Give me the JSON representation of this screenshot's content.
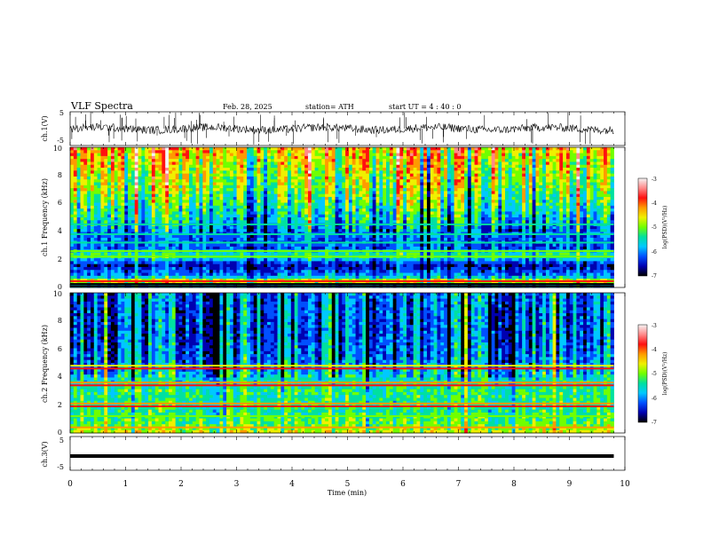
{
  "header": {
    "title": "VLF  Spectra",
    "date": "Feb. 28, 2025",
    "station": "station= ATH",
    "start": "start  UT  =   4  : 40 : 0"
  },
  "colorbar": {
    "label": "log(PSD)(V²/Hz)",
    "ticks": [
      "-3",
      "-4",
      "-5",
      "-6",
      "-7"
    ],
    "colors": [
      "#f4f4f4",
      "#ff8a8a",
      "#ff1010",
      "#ff9a00",
      "#f0f000",
      "#70ff00",
      "#00e0a0",
      "#00c8ff",
      "#0050ff",
      "#0000b0",
      "#000000"
    ]
  },
  "chart_data": [
    {
      "type": "line",
      "name": "ch1",
      "ylabel": "ch.1(V)",
      "ylim": [
        -5,
        5
      ],
      "yticks": [
        "5",
        "-5"
      ],
      "xlim": [
        0,
        10
      ],
      "data_end": 9.8,
      "baseline": 0,
      "noise_amplitude": 1.2,
      "spike_count": 70
    },
    {
      "type": "heatmap",
      "name": "ch1-spectrogram",
      "ylabel": "ch.1 Frequency (kHz)",
      "ylim": [
        0,
        10
      ],
      "yticks": [
        "0",
        "2",
        "4",
        "6",
        "8",
        "10"
      ],
      "xlim": [
        0,
        10
      ],
      "data_end": 9.8,
      "value_range": [
        -7,
        -3
      ],
      "profile": [
        {
          "f": 0.0,
          "v": -6.5
        },
        {
          "f": 0.4,
          "v": -4.3
        },
        {
          "f": 0.8,
          "v": -6.0
        },
        {
          "f": 1.6,
          "v": -6.6
        },
        {
          "f": 2.3,
          "v": -5.2
        },
        {
          "f": 2.8,
          "v": -6.2
        },
        {
          "f": 4.0,
          "v": -6.1
        },
        {
          "f": 5.0,
          "v": -5.6
        },
        {
          "f": 7.0,
          "v": -5.0
        },
        {
          "f": 9.0,
          "v": -4.6
        },
        {
          "f": 10.0,
          "v": -4.3
        }
      ],
      "lines": [
        {
          "f": 0.1,
          "v": -7.0
        },
        {
          "f": 0.25,
          "v": -6.8
        },
        {
          "f": 0.45,
          "v": -3.6
        },
        {
          "f": 2.2,
          "v": -4.8
        },
        {
          "f": 2.6,
          "v": -5.0
        },
        {
          "f": 3.2,
          "v": -5.3
        },
        {
          "f": 3.8,
          "v": -5.5
        },
        {
          "f": 4.5,
          "v": -5.5
        }
      ]
    },
    {
      "type": "heatmap",
      "name": "ch2-spectrogram",
      "ylabel": "ch.2 Frequency (kHz)",
      "ylim": [
        0,
        10
      ],
      "yticks": [
        "0",
        "2",
        "4",
        "6",
        "8",
        "10"
      ],
      "xlim": [
        0,
        10
      ],
      "data_end": 9.8,
      "value_range": [
        -7,
        -3
      ],
      "profile": [
        {
          "f": 0.0,
          "v": -4.6
        },
        {
          "f": 0.5,
          "v": -5.0
        },
        {
          "f": 1.5,
          "v": -5.3
        },
        {
          "f": 3.0,
          "v": -5.3
        },
        {
          "f": 4.0,
          "v": -5.6
        },
        {
          "f": 5.0,
          "v": -6.0
        },
        {
          "f": 7.0,
          "v": -6.2
        },
        {
          "f": 10.0,
          "v": -6.1
        }
      ],
      "lines": [
        {
          "f": 0.4,
          "v": -4.3
        },
        {
          "f": 1.2,
          "v": -4.8
        },
        {
          "f": 1.9,
          "v": -3.9
        },
        {
          "f": 2.1,
          "v": -4.2
        },
        {
          "f": 3.4,
          "v": -3.8
        },
        {
          "f": 3.6,
          "v": -4.3
        },
        {
          "f": 4.6,
          "v": -3.9
        },
        {
          "f": 4.8,
          "v": -4.6
        }
      ]
    },
    {
      "type": "line",
      "name": "ch3",
      "ylabel": "ch.3(V)",
      "ylim": [
        -5,
        5
      ],
      "yticks": [
        "5",
        "-5"
      ],
      "xlim": [
        0,
        10
      ],
      "data_end": 9.8,
      "baseline": -0.8,
      "noise_amplitude": 0.05,
      "spike_count": 0
    }
  ],
  "xaxis": {
    "label": "Time  (min)",
    "ticks": [
      "0",
      "1",
      "2",
      "3",
      "4",
      "5",
      "6",
      "7",
      "8",
      "9",
      "10"
    ]
  }
}
